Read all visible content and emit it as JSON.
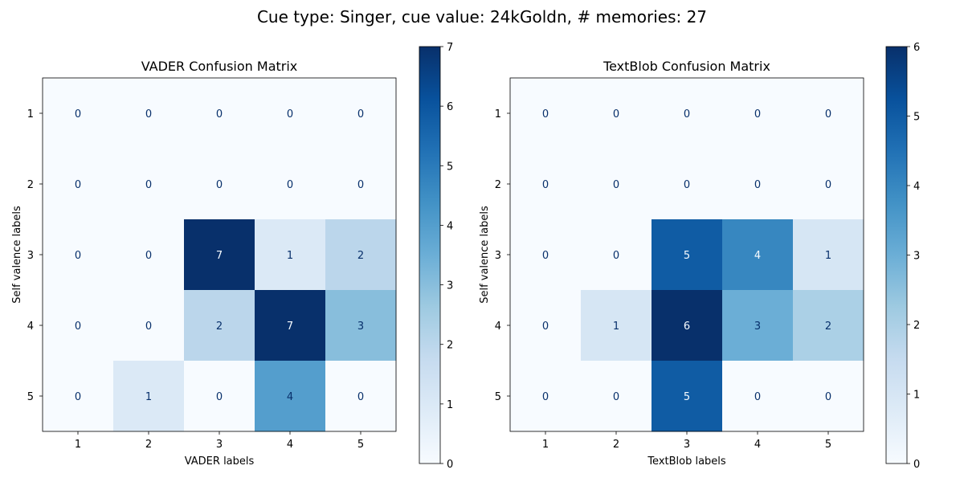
{
  "figure_title": "Cue type: Singer, cue value: 24kGoldn, # memories: 27",
  "chart_data": [
    {
      "type": "heatmap",
      "title": "VADER Confusion Matrix",
      "xlabel": "VADER labels",
      "ylabel": "Self valence labels",
      "x_categories": [
        "1",
        "2",
        "3",
        "4",
        "5"
      ],
      "y_categories": [
        "1",
        "2",
        "3",
        "4",
        "5"
      ],
      "values": [
        [
          0,
          0,
          0,
          0,
          0
        ],
        [
          0,
          0,
          0,
          0,
          0
        ],
        [
          0,
          0,
          7,
          1,
          2
        ],
        [
          0,
          0,
          2,
          7,
          3
        ],
        [
          0,
          1,
          0,
          4,
          0
        ]
      ],
      "colormap": "Blues",
      "colorbar_range": [
        0,
        7
      ],
      "colorbar_ticks": [
        0,
        1,
        2,
        3,
        4,
        5,
        6,
        7
      ]
    },
    {
      "type": "heatmap",
      "title": "TextBlob Confusion Matrix",
      "xlabel": "TextBlob labels",
      "ylabel": "Self valence labels",
      "x_categories": [
        "1",
        "2",
        "3",
        "4",
        "5"
      ],
      "y_categories": [
        "1",
        "2",
        "3",
        "4",
        "5"
      ],
      "values": [
        [
          0,
          0,
          0,
          0,
          0
        ],
        [
          0,
          0,
          0,
          0,
          0
        ],
        [
          0,
          0,
          5,
          4,
          1
        ],
        [
          0,
          1,
          6,
          3,
          2
        ],
        [
          0,
          0,
          5,
          0,
          0
        ]
      ],
      "colormap": "Blues",
      "colorbar_range": [
        0,
        6
      ],
      "colorbar_ticks": [
        0,
        1,
        2,
        3,
        4,
        5,
        6
      ]
    }
  ]
}
